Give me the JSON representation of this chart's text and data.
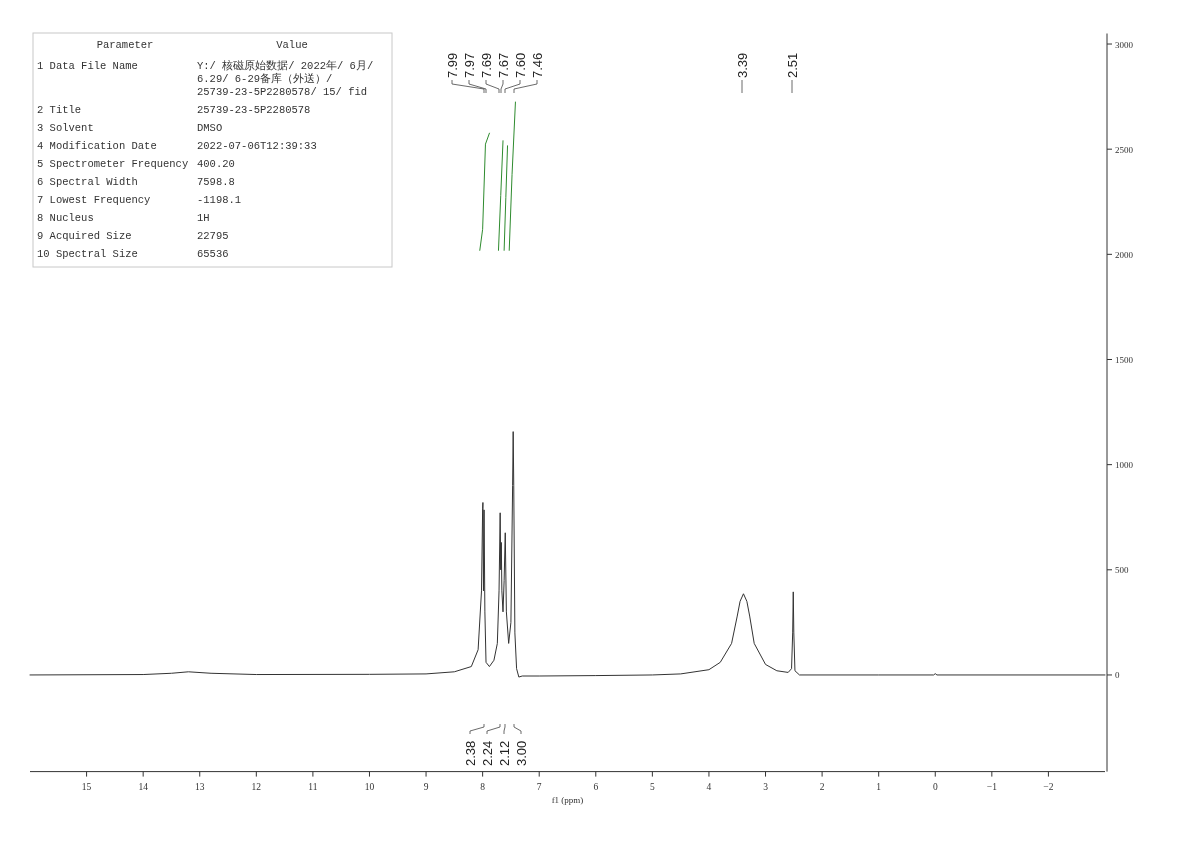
{
  "chart_data": [
    {
      "type": "other",
      "annotations": [
        "Parameter",
        "Value",
        "1 Data File Name",
        "Y:/ 核磁原始数据/ 2022年/ 6月/ 6.29/ 6-29备库（外送）/ 25739-23-5P2280578/ 15/ fid",
        "2 Title",
        "25739-23-5P2280578",
        "3 Solvent",
        "DMSO",
        "4 Modification Date",
        "2022-07-06T12:39:33",
        "5 Spectrometer Frequency",
        "400.20",
        "6 Spectral Width",
        "7598.8",
        "7 Lowest Frequency",
        "-1198.1",
        "8 Nucleus",
        "1H",
        "9 Acquired Size",
        "22795",
        "10 Spectral Size",
        "65536"
      ]
    },
    {
      "type": "line",
      "xlabel": "f1 (ppm)",
      "xlim": [
        16,
        -3
      ],
      "xticks": [
        15,
        14,
        13,
        12,
        11,
        10,
        9,
        8,
        7,
        6,
        5,
        4,
        3,
        2,
        1,
        0,
        {
          "value": -1,
          "label": "−1"
        },
        {
          "value": -2,
          "label": "−2"
        }
      ],
      "ylim": [
        -450,
        3050
      ],
      "yticks": [
        0,
        500,
        1000,
        1500,
        2000,
        2500,
        3000
      ],
      "grid": false,
      "marker": "none",
      "line_style": "solid",
      "series": [
        {
          "color": "#333333",
          "x": [
            16,
            14,
            13.5,
            13.2,
            12.8,
            12,
            10,
            9,
            8.5,
            8.2,
            8.08,
            8.02,
            8.0,
            7.995,
            7.985,
            7.975,
            7.96,
            7.94,
            7.88,
            7.8,
            7.74,
            7.71,
            7.69,
            7.68,
            7.67,
            7.66,
            7.64,
            7.62,
            7.6,
            7.58,
            7.54,
            7.5,
            7.47,
            7.46,
            7.45,
            7.43,
            7.4,
            7.36,
            7.3,
            7,
            6,
            5,
            4.5,
            4,
            3.8,
            3.6,
            3.5,
            3.45,
            3.39,
            3.33,
            3.28,
            3.2,
            3,
            2.8,
            2.6,
            2.54,
            2.52,
            2.51,
            2.5,
            2.48,
            2.4,
            1,
            0.03,
            0,
            -0.03,
            -3
          ],
          "values": [
            0,
            2,
            8,
            15,
            8,
            2,
            3,
            5,
            15,
            40,
            120,
            400,
            790,
            820,
            400,
            785,
            300,
            60,
            40,
            70,
            150,
            400,
            771,
            500,
            630,
            400,
            300,
            450,
            676,
            300,
            150,
            250,
            900,
            1157,
            900,
            200,
            30,
            -10,
            -5,
            -5,
            -3,
            0,
            5,
            25,
            60,
            150,
            280,
            350,
            386,
            350,
            280,
            150,
            50,
            20,
            12,
            30,
            200,
            395,
            200,
            20,
            0,
            0,
            0,
            6,
            0,
            0
          ]
        },
        {
          "color": "#2e8b2e",
          "x": [
            8.05,
            8.0,
            7.95,
            7.88
          ],
          "values": [
            2019,
            2119,
            2524,
            2576
          ]
        },
        {
          "color": "#2e8b2e",
          "x": [
            7.72,
            7.68,
            7.64
          ],
          "values": [
            2019,
            2280,
            2540
          ]
        },
        {
          "color": "#2e8b2e",
          "x": [
            7.62,
            7.59,
            7.56
          ],
          "values": [
            2019,
            2270,
            2516
          ]
        },
        {
          "color": "#2e8b2e",
          "x": [
            7.53,
            7.48,
            7.42
          ],
          "values": [
            2019,
            2380,
            2724
          ]
        }
      ],
      "annotations": [
        "7.99",
        "7.97",
        "7.69",
        "7.67",
        "7.60",
        "7.46",
        "3.39",
        "2.51",
        "2.38",
        "2.24",
        "2.12",
        "3.00"
      ]
    }
  ]
}
